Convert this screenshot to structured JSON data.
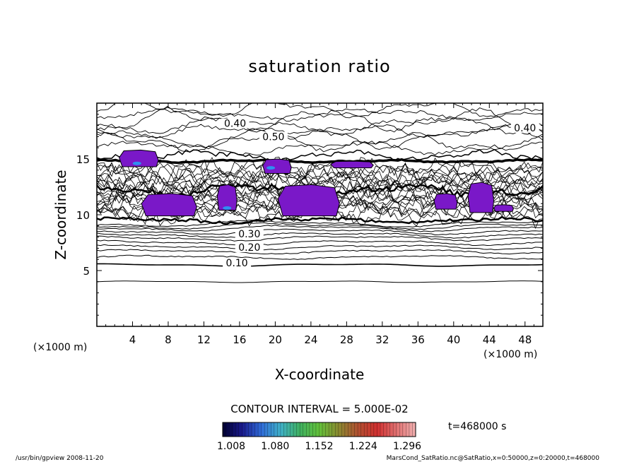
{
  "chart_data": {
    "type": "contour",
    "title": "saturation ratio",
    "xlabel": "X-coordinate",
    "ylabel": "Z-coordinate",
    "x_unit_left": "(×1000 m)",
    "x_unit_right": "(×1000 m)",
    "y_unit": "(×1000 m)",
    "xlim": [
      0,
      50
    ],
    "ylim": [
      0,
      20
    ],
    "x_ticks": [
      4,
      8,
      12,
      16,
      20,
      24,
      28,
      32,
      36,
      40,
      44,
      48
    ],
    "y_ticks": [
      5,
      10,
      15
    ],
    "grid": false,
    "contour_interval_label": "CONTOUR INTERVAL = 5.000E-02",
    "time_label": "t=468000 s",
    "contour_labels": [
      {
        "text": "0.10",
        "x": 15.7,
        "z": 5.5
      },
      {
        "text": "0.20",
        "x": 17.1,
        "z": 6.9
      },
      {
        "text": "0.30",
        "x": 17.1,
        "z": 8.1
      },
      {
        "text": "0.40",
        "x": 15.5,
        "z": 18.0
      },
      {
        "text": "0.40",
        "x": 48.0,
        "z": 17.6
      },
      {
        "text": "0.50",
        "x": 19.8,
        "z": 16.8
      }
    ],
    "shaded_regions": [
      {
        "x": [
          2.5,
          6.9
        ],
        "z": [
          14.3,
          15.8
        ]
      },
      {
        "x": [
          5.0,
          11.2
        ],
        "z": [
          9.9,
          11.9
        ]
      },
      {
        "x": [
          13.5,
          15.7
        ],
        "z": [
          10.4,
          12.7
        ]
      },
      {
        "x": [
          18.6,
          21.8
        ],
        "z": [
          13.7,
          15.0
        ]
      },
      {
        "x": [
          20.3,
          27.2
        ],
        "z": [
          9.9,
          12.7
        ]
      },
      {
        "x": [
          26.2,
          31.0
        ],
        "z": [
          14.2,
          14.8
        ]
      },
      {
        "x": [
          37.8,
          40.4
        ],
        "z": [
          10.5,
          11.9
        ]
      },
      {
        "x": [
          41.6,
          44.5
        ],
        "z": [
          10.2,
          12.9
        ]
      },
      {
        "x": [
          44.5,
          46.7
        ],
        "z": [
          10.3,
          10.9
        ]
      }
    ],
    "colorbar": {
      "min": 1.008,
      "max": 1.296,
      "tick_labels": [
        "1.008",
        "1.080",
        "1.152",
        "1.224",
        "1.296"
      ],
      "colors": [
        "#000030",
        "#1a1a8c",
        "#2f6bd8",
        "#3fb0c8",
        "#3fb060",
        "#62c03a",
        "#8a8a30",
        "#b05030",
        "#d03030",
        "#e07070",
        "#f0b0b0"
      ]
    },
    "shade_color": "#7a18c8"
  },
  "footer": {
    "left": "/usr/bin/gpview  2008-11-20",
    "right": "MarsCond_SatRatio.nc@SatRatio,x=0:50000,z=0:20000,t=468000"
  }
}
